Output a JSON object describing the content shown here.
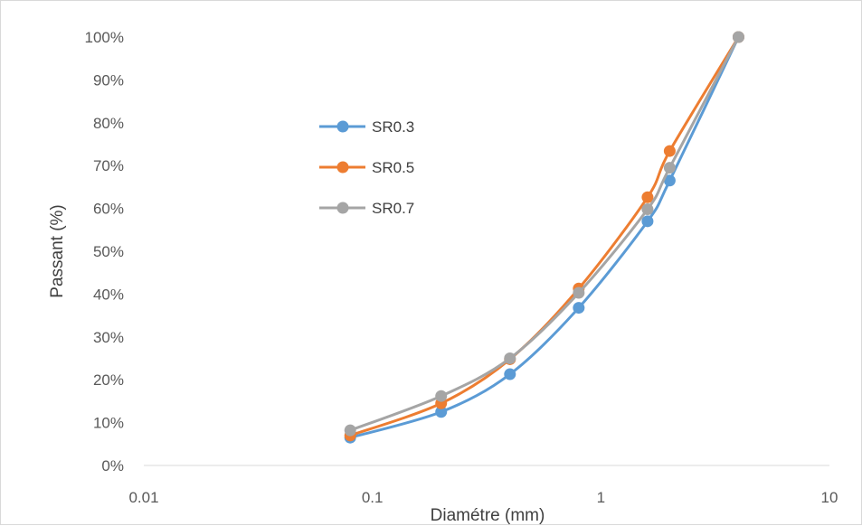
{
  "chart_data": {
    "type": "line",
    "title": "",
    "xlabel": "Diamétre (mm)",
    "ylabel": "Passant (%)",
    "x_scale": "log",
    "xlim": [
      0.01,
      10
    ],
    "ylim": [
      0,
      100
    ],
    "x_ticks": [
      "0.01",
      "0.1",
      "1",
      "10"
    ],
    "y_ticks": [
      "0%",
      "10%",
      "20%",
      "30%",
      "40%",
      "50%",
      "60%",
      "70%",
      "80%",
      "90%",
      "100%"
    ],
    "grid": false,
    "legend_position": "left-center",
    "x": [
      0.08,
      0.2,
      0.4,
      0.8,
      1.6,
      2,
      4
    ],
    "series": [
      {
        "name": "SR0.3",
        "color": "#5b9bd5",
        "values": [
          6.5,
          12.5,
          21.3,
          36.8,
          57,
          66.5,
          100
        ]
      },
      {
        "name": "SR0.5",
        "color": "#ed7d31",
        "values": [
          7,
          14.5,
          24.8,
          41.3,
          62.6,
          73.4,
          100
        ]
      },
      {
        "name": "SR0.7",
        "color": "#a5a5a5",
        "values": [
          8.2,
          16.2,
          25,
          40.3,
          59.8,
          69.5,
          100
        ]
      }
    ]
  }
}
